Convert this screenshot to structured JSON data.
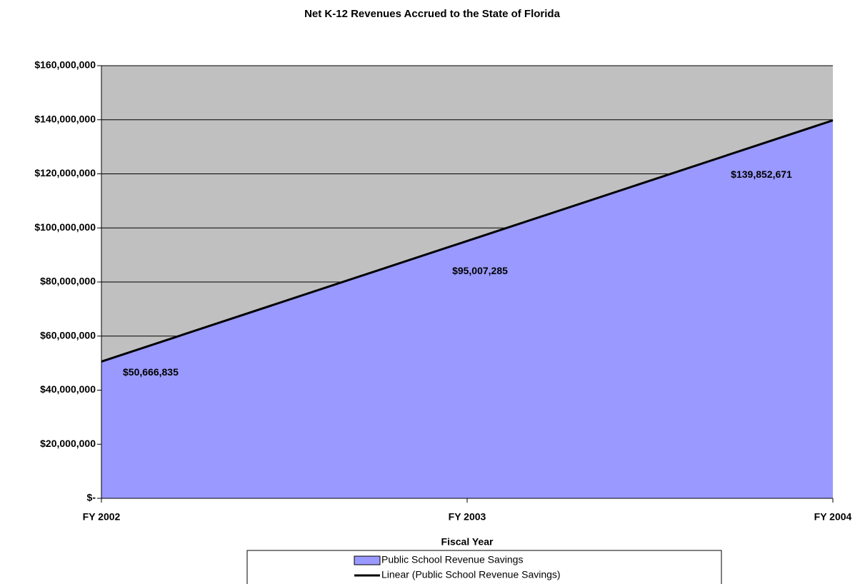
{
  "chart_data": {
    "type": "area",
    "title": "Net K-12 Revenues Accrued to the State of Florida",
    "x_label": "Fiscal Year",
    "categories": [
      "FY 2002",
      "FY 2003",
      "FY 2004"
    ],
    "series": [
      {
        "name": "Public School Revenue Savings",
        "color": "#9999ff",
        "type": "area",
        "values": [
          50666835,
          95007285,
          139852671
        ],
        "value_labels": [
          "$50,666,835",
          "$95,007,285",
          "$139,852,671"
        ]
      },
      {
        "name": "Linear (Public School Revenue Savings)",
        "color": "#000000",
        "type": "line",
        "values": [
          50582679,
          95175597,
          139768515
        ]
      }
    ],
    "ylim": [
      0,
      160000000
    ],
    "yticks": [
      {
        "value": 0,
        "label": "$-"
      },
      {
        "value": 20000000,
        "label": "$20,000,000"
      },
      {
        "value": 40000000,
        "label": "$40,000,000"
      },
      {
        "value": 60000000,
        "label": "$60,000,000"
      },
      {
        "value": 80000000,
        "label": "$80,000,000"
      },
      {
        "value": 100000000,
        "label": "$100,000,000"
      },
      {
        "value": 120000000,
        "label": "$120,000,000"
      },
      {
        "value": 140000000,
        "label": "$140,000,000"
      },
      {
        "value": 160000000,
        "label": "$160,000,000"
      }
    ],
    "grid": true,
    "plot_background": "#c0c0c0",
    "legend": "bottom"
  }
}
